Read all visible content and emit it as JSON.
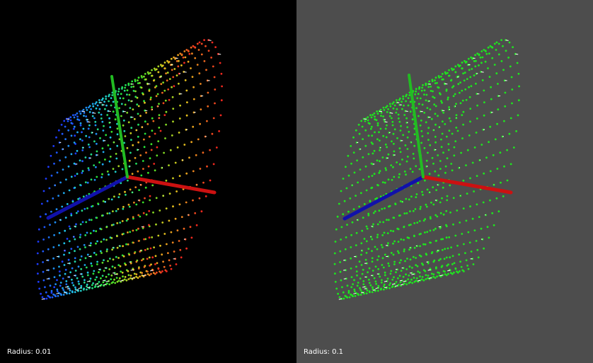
{
  "window": {
    "background_color": "#000000"
  },
  "viewports": [
    {
      "id": "left",
      "label": "Radius: 0.01",
      "background": "#000000",
      "point_coloring": "rainbow-gradient",
      "point_color": null
    },
    {
      "id": "right",
      "label": "Radius: 0.1",
      "background": "#4d4d4d",
      "point_coloring": "solid",
      "point_color": "#1ee61e"
    }
  ],
  "axes_colors": {
    "x": "#cc1111",
    "y": "#22bb22",
    "z": "#1111aa"
  },
  "normal_color": "#ffffff"
}
